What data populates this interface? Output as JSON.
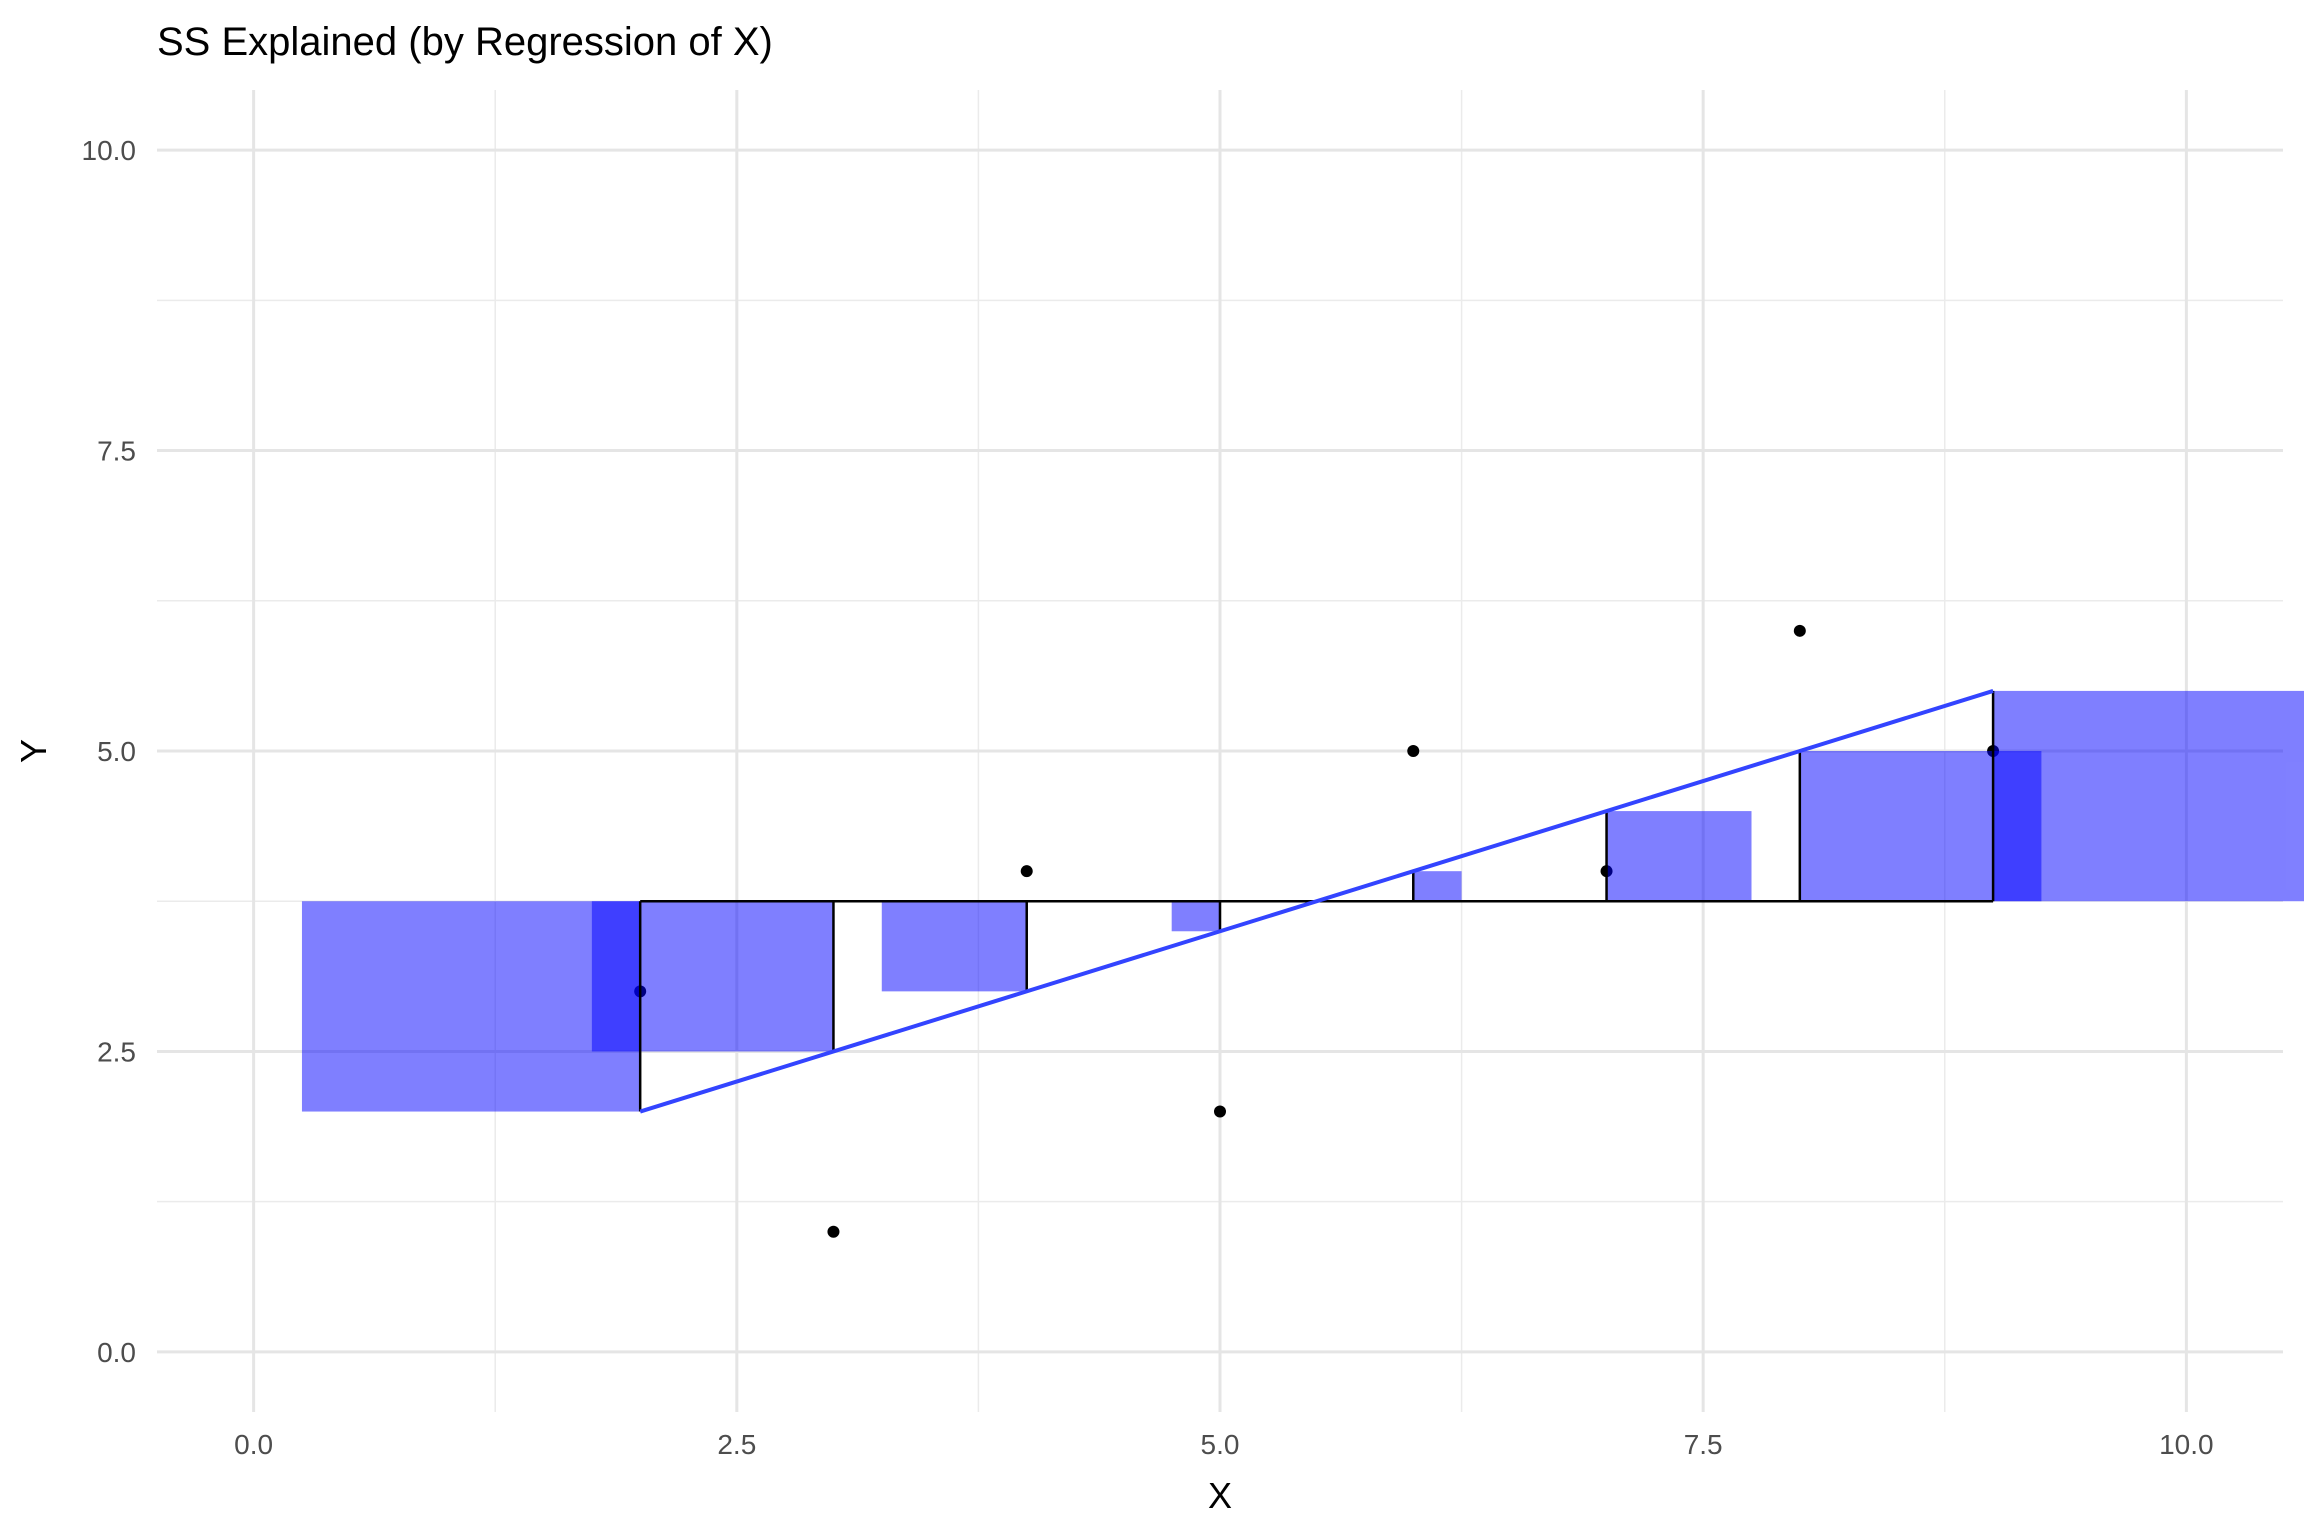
{
  "chart_data": {
    "type": "scatter",
    "title": "SS Explained (by Regression of X)",
    "xlabel": "X",
    "ylabel": "Y",
    "xlim": [
      -0.5,
      10.5
    ],
    "ylim": [
      -0.5,
      10.5
    ],
    "xticks": [
      0,
      2.5,
      5,
      7.5,
      10
    ],
    "yticks": [
      0,
      2.5,
      5,
      7.5,
      10
    ],
    "xtick_labels": [
      "0.0",
      "2.5",
      "5.0",
      "7.5",
      "10.0"
    ],
    "ytick_labels": [
      "0.0",
      "2.5",
      "5.0",
      "7.5",
      "10.0"
    ],
    "grid": true,
    "points": {
      "x": [
        2,
        3,
        4,
        5,
        6,
        7,
        8,
        9
      ],
      "y": [
        3,
        1,
        4,
        2,
        5,
        4,
        6,
        5
      ]
    },
    "mean_y": 3.75,
    "regression": {
      "intercept": 1.0,
      "slope": 0.5,
      "x_range": [
        2,
        9
      ]
    },
    "colors": {
      "squares": "#0000ff",
      "squares_opacity": 0.5,
      "regression_line": "#3344ff",
      "points": "#000000",
      "segments": "#000000"
    }
  }
}
